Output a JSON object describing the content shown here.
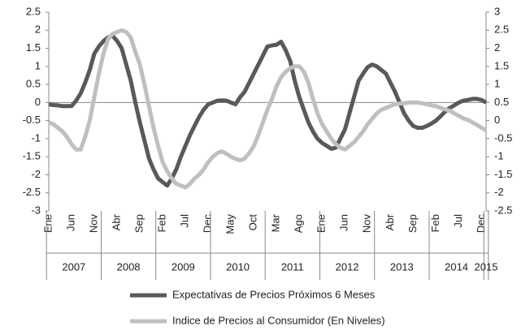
{
  "chart_data": {
    "type": "line",
    "categories": [
      "Ene",
      null,
      null,
      null,
      null,
      "Jun",
      null,
      null,
      null,
      null,
      "Nov",
      null,
      null,
      null,
      null,
      "Abr",
      null,
      null,
      null,
      null,
      "Sep",
      null,
      null,
      null,
      null,
      "Feb",
      null,
      null,
      null,
      null,
      "Jul",
      null,
      null,
      null,
      null,
      "Dec",
      null,
      null,
      null,
      null,
      "May",
      null,
      null,
      null,
      null,
      "Oct",
      null,
      null,
      null,
      null,
      "Mar",
      null,
      null,
      null,
      null,
      "Ago",
      null,
      null,
      null,
      null,
      "Ene",
      null,
      null,
      null,
      null,
      "Jun",
      null,
      null,
      null,
      null,
      "Nov",
      null,
      null,
      null,
      null,
      "Abr",
      null,
      null,
      null,
      null,
      "Sep",
      null,
      null,
      null,
      null,
      "Feb",
      null,
      null,
      null,
      null,
      "Jul",
      null,
      null,
      null,
      null,
      "Dec",
      null
    ],
    "groups": [
      {
        "label": "2007",
        "count": 12
      },
      {
        "label": "2008",
        "count": 12
      },
      {
        "label": "2009",
        "count": 12
      },
      {
        "label": "2010",
        "count": 12
      },
      {
        "label": "2011",
        "count": 12
      },
      {
        "label": "2012",
        "count": 12
      },
      {
        "label": "2013",
        "count": 12
      },
      {
        "label": "2014",
        "count": 12
      },
      {
        "label": "2015",
        "count": 1
      }
    ],
    "series": [
      {
        "name": "Expectativas de Precios Próximos 6 Meses",
        "color": "#595959",
        "values": [
          -0.05,
          -0.07,
          -0.08,
          -0.1,
          -0.1,
          -0.1,
          0.05,
          0.25,
          0.55,
          0.9,
          1.35,
          1.55,
          1.7,
          1.8,
          1.85,
          1.7,
          1.5,
          1.05,
          0.6,
          0.0,
          -0.55,
          -1.05,
          -1.55,
          -1.85,
          -2.1,
          -2.2,
          -2.3,
          -2.1,
          -1.85,
          -1.5,
          -1.2,
          -0.9,
          -0.65,
          -0.4,
          -0.2,
          -0.05,
          0.0,
          0.05,
          0.06,
          0.05,
          0.0,
          -0.05,
          0.15,
          0.3,
          0.55,
          0.8,
          1.05,
          1.3,
          1.55,
          1.58,
          1.6,
          1.68,
          1.45,
          1.15,
          0.6,
          0.15,
          -0.2,
          -0.55,
          -0.8,
          -1.0,
          -1.12,
          -1.2,
          -1.28,
          -1.25,
          -1.0,
          -0.75,
          -0.3,
          0.15,
          0.6,
          0.8,
          0.98,
          1.05,
          1.0,
          0.9,
          0.8,
          0.55,
          0.3,
          0.0,
          -0.3,
          -0.5,
          -0.65,
          -0.7,
          -0.7,
          -0.65,
          -0.58,
          -0.5,
          -0.38,
          -0.25,
          -0.15,
          -0.08,
          0.0,
          0.05,
          0.07,
          0.1,
          0.1,
          0.07,
          0.0
        ]
      },
      {
        "name": "Indice de Precios al Consumidor (En Niveles)",
        "color": "#bfbfbf",
        "axis": "y2",
        "values": [
          -0.05,
          -0.1,
          -0.2,
          -0.3,
          -0.45,
          -0.65,
          -0.8,
          -0.8,
          -0.45,
          0.0,
          0.65,
          1.3,
          1.85,
          2.25,
          2.4,
          2.45,
          2.5,
          2.45,
          2.3,
          1.9,
          1.55,
          1.0,
          0.4,
          -0.2,
          -0.7,
          -1.15,
          -1.4,
          -1.6,
          -1.75,
          -1.8,
          -1.85,
          -1.75,
          -1.6,
          -1.5,
          -1.35,
          -1.15,
          -1.0,
          -0.9,
          -0.85,
          -0.92,
          -1.0,
          -1.06,
          -1.1,
          -1.05,
          -0.9,
          -0.7,
          -0.4,
          -0.05,
          0.3,
          0.6,
          0.95,
          1.2,
          1.35,
          1.45,
          1.5,
          1.5,
          1.35,
          1.05,
          0.6,
          0.2,
          -0.1,
          -0.3,
          -0.5,
          -0.65,
          -0.75,
          -0.8,
          -0.7,
          -0.6,
          -0.45,
          -0.3,
          -0.1,
          0.05,
          0.2,
          0.3,
          0.35,
          0.4,
          0.45,
          0.47,
          0.48,
          0.5,
          0.5,
          0.5,
          0.48,
          0.45,
          0.42,
          0.4,
          0.35,
          0.31,
          0.27,
          0.2,
          0.13,
          0.06,
          0.02,
          -0.05,
          -0.12,
          -0.2,
          -0.27
        ]
      }
    ],
    "ylim": [
      -3,
      2.5
    ],
    "yticks": [
      -3,
      -2.5,
      -2,
      -1.5,
      -1,
      -0.5,
      0,
      0.5,
      1,
      1.5,
      2,
      2.5
    ],
    "y2lim": [
      -2.5,
      3
    ],
    "y2ticks": [
      -2.5,
      -2,
      -1.5,
      -1,
      -0.5,
      0,
      0.5,
      1,
      1.5,
      2,
      2.5,
      3
    ],
    "legend": "bottom"
  }
}
